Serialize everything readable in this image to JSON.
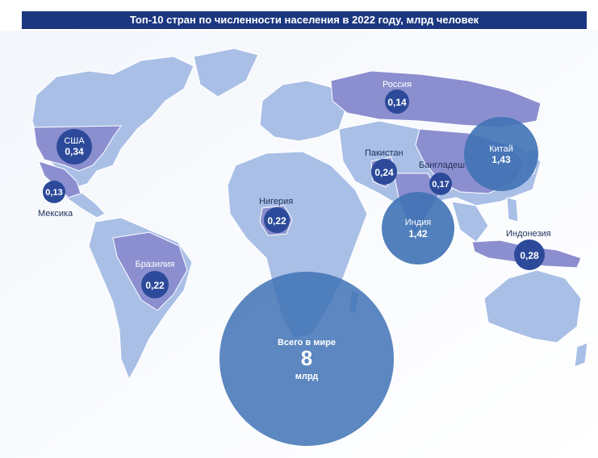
{
  "title": "Топ-10 стран по численности населения в 2022 году, млрд человек",
  "colors": {
    "title_bg": "#1c3781",
    "land": "#a9bfe6",
    "highlight_country": "#8b8fcf",
    "small_bubble": "#2c4a99",
    "big_bubble": "#3f72b5"
  },
  "countries": [
    {
      "name": "США",
      "value": "0,34"
    },
    {
      "name": "Мексика",
      "value": "0,13"
    },
    {
      "name": "Бразилия",
      "value": "0,22"
    },
    {
      "name": "Нигерия",
      "value": "0,22"
    },
    {
      "name": "Россия",
      "value": "0,14"
    },
    {
      "name": "Пакистан",
      "value": "0,24"
    },
    {
      "name": "Бангладеш",
      "value": "0,17"
    },
    {
      "name": "Индия",
      "value": "1,42"
    },
    {
      "name": "Китай",
      "value": "1,43"
    },
    {
      "name": "Индонезия",
      "value": "0,28"
    }
  ],
  "world": {
    "label": "Всего в мире",
    "value": "8",
    "unit": "млрд"
  }
}
